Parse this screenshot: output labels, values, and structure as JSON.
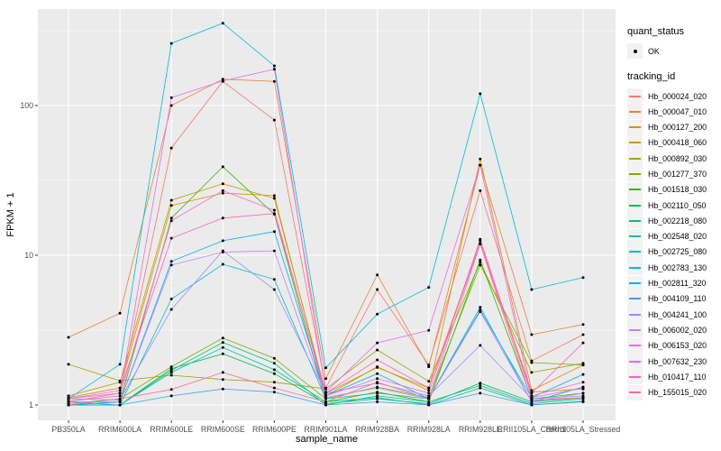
{
  "figure": {
    "xlabel": "sample_name",
    "ylabel": "FPKM + 1"
  },
  "legend": {
    "quant_status_title": "quant_status",
    "quant_status_items": [
      {
        "label": "OK",
        "marker": "black-point-icon"
      }
    ],
    "tracking_id_title": "tracking_id"
  },
  "colors": {
    "panel_bg": "#EBEBEB",
    "grid_major": "#FFFFFF",
    "grid_minor": "#FFFFFF",
    "point": "#000000",
    "axis_tick_text": "#4D4D4D",
    "tick_mark": "#333333",
    "legend_key_bg": "#F2F2F2"
  },
  "chart_data": {
    "type": "line",
    "title": "",
    "xlabel": "sample_name",
    "ylabel": "FPKM + 1",
    "y_scale": "log10",
    "y_ticks": [
      1,
      10,
      100
    ],
    "y_minor_ticks": [
      3.162,
      31.62,
      316.2
    ],
    "ylim": [
      1,
      440
    ],
    "grid": true,
    "legend_position": "right",
    "point_marker": "black dot (quant_status OK)",
    "categories": [
      "PB350LA",
      "RRIM600LA",
      "RRIM600LE",
      "RRIM600SE",
      "RRIM600PE",
      "RRIM901LA",
      "RRIM928BA",
      "RRIM928LA",
      "RRIM928LE",
      "RRII105LA_Control",
      "RRII105LA_Stressed"
    ],
    "series": [
      {
        "name": "Hb_000024_020",
        "color": "#F8766D",
        "values": [
          1.05,
          1.2,
          52,
          145,
          80,
          1.3,
          5.9,
          1.85,
          27,
          1.97,
          2.95
        ]
      },
      {
        "name": "Hb_000047_010",
        "color": "#EA8331",
        "values": [
          2.83,
          4.1,
          100,
          150,
          145,
          1.5,
          7.4,
          1.8,
          40,
          2.95,
          3.45
        ]
      },
      {
        "name": "Hb_000127_200",
        "color": "#D89000",
        "values": [
          1.12,
          1.3,
          21.5,
          26,
          25,
          1.15,
          1.8,
          1.25,
          44,
          1.25,
          1.85
        ]
      },
      {
        "name": "Hb_000418_060",
        "color": "#C09B00",
        "values": [
          1.15,
          1.42,
          23.3,
          30,
          24,
          1.2,
          1.78,
          1.3,
          12.5,
          1.22,
          1.28
        ]
      },
      {
        "name": "Hb_000892_030",
        "color": "#A3A500",
        "values": [
          1.87,
          1.45,
          1.58,
          1.48,
          1.42,
          1.28,
          2.33,
          1.44,
          9.0,
          1.65,
          1.9
        ]
      },
      {
        "name": "Hb_001277_370",
        "color": "#7CAE00",
        "values": [
          1.02,
          1.1,
          1.8,
          2.8,
          2.05,
          1.1,
          1.32,
          1.12,
          8.6,
          1.92,
          1.85
        ]
      },
      {
        "name": "Hb_001518_030",
        "color": "#39B600",
        "values": [
          1.0,
          1.05,
          17.7,
          39,
          18.8,
          1.05,
          1.22,
          1.05,
          9.3,
          1.1,
          1.2
        ]
      },
      {
        "name": "Hb_002110_050",
        "color": "#00BB4E",
        "values": [
          1.0,
          1.0,
          1.75,
          2.2,
          1.62,
          1.02,
          1.1,
          1.02,
          1.4,
          1.05,
          1.12
        ]
      },
      {
        "name": "Hb_002218_080",
        "color": "#00BF7D",
        "values": [
          1.0,
          1.0,
          1.7,
          2.62,
          1.9,
          1.0,
          1.15,
          1.05,
          1.35,
          1.02,
          1.1
        ]
      },
      {
        "name": "Hb_002548_020",
        "color": "#00C1A3",
        "values": [
          1.0,
          1.0,
          1.65,
          2.42,
          1.72,
          1.05,
          1.12,
          1.0,
          1.3,
          1.0,
          1.06
        ]
      },
      {
        "name": "Hb_002725_080",
        "color": "#00BFC4",
        "values": [
          1.0,
          1.0,
          5.1,
          8.7,
          6.9,
          1.1,
          1.2,
          1.1,
          4.5,
          1.05,
          1.32
        ]
      },
      {
        "name": "Hb_002783_130",
        "color": "#00BAE0",
        "values": [
          1.1,
          1.87,
          260,
          355,
          184,
          1.77,
          4.05,
          6.1,
          120,
          5.9,
          7.1
        ]
      },
      {
        "name": "Hb_002811_320",
        "color": "#00B0F6",
        "values": [
          1.0,
          1.05,
          9.1,
          12.5,
          14.4,
          1.15,
          1.62,
          1.1,
          4.3,
          1.12,
          1.6
        ]
      },
      {
        "name": "Hb_004109_110",
        "color": "#35A2FF",
        "values": [
          1.05,
          1.0,
          1.15,
          1.28,
          1.22,
          1.0,
          1.05,
          1.0,
          1.2,
          1.0,
          1.05
        ]
      },
      {
        "name": "Hb_004241_100",
        "color": "#9590FF",
        "values": [
          1.1,
          1.08,
          4.35,
          10.7,
          5.9,
          1.2,
          1.4,
          1.15,
          2.5,
          1.1,
          1.15
        ]
      },
      {
        "name": "Hb_006002_020",
        "color": "#C77CFF",
        "values": [
          1.05,
          1.05,
          8.6,
          10.5,
          10.7,
          1.12,
          1.3,
          1.1,
          4.2,
          1.05,
          1.2
        ]
      },
      {
        "name": "Hb_006153_020",
        "color": "#E76BF3",
        "values": [
          1.1,
          1.2,
          113,
          146,
          175,
          1.22,
          2.6,
          3.15,
          40,
          1.12,
          1.3
        ]
      },
      {
        "name": "Hb_007632_230",
        "color": "#FA62DB",
        "values": [
          1.06,
          1.15,
          17,
          27,
          20,
          1.15,
          1.5,
          1.2,
          12.8,
          1.15,
          1.42
        ]
      },
      {
        "name": "Hb_010417_110",
        "color": "#FF62BC",
        "values": [
          1.1,
          1.25,
          13.0,
          17.7,
          19,
          1.2,
          2.0,
          1.3,
          12.0,
          1.2,
          2.6
        ]
      },
      {
        "name": "Hb_155015_020",
        "color": "#FF6A98",
        "values": [
          1.0,
          1.1,
          1.27,
          1.65,
          1.3,
          1.05,
          1.42,
          1.1,
          11.9,
          1.08,
          1.12
        ]
      }
    ]
  }
}
